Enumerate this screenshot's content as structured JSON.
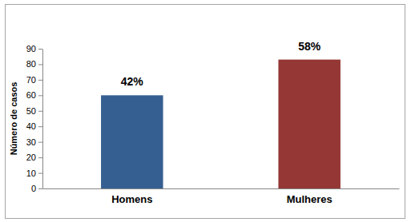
{
  "chart_data": {
    "type": "bar",
    "y_label": "Número de casos",
    "categories": [
      "Homens",
      "Mulheres"
    ],
    "values": [
      60,
      83
    ],
    "annotations": [
      "42%",
      "58%"
    ],
    "colors": [
      "#365f91",
      "#953735"
    ],
    "ylim": [
      0,
      90
    ],
    "yticks": [
      0,
      10,
      20,
      30,
      40,
      50,
      60,
      70,
      80,
      90
    ],
    "grid": false
  }
}
